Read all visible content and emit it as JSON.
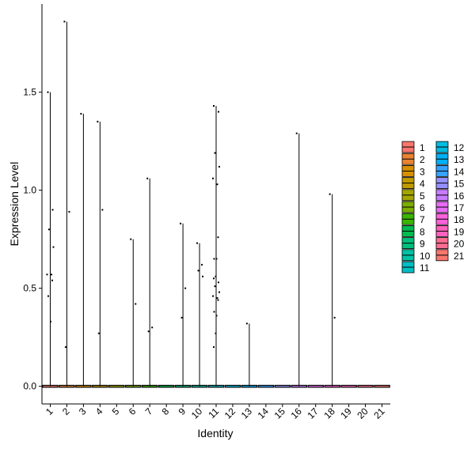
{
  "chart_data": {
    "type": "violin",
    "xlabel": "Identity",
    "ylabel": "Expression Level",
    "ylim": [
      -0.09,
      1.95
    ],
    "yticks": [
      0.0,
      0.5,
      1.0,
      1.5
    ],
    "ytick_labels": [
      "0.0",
      "0.5",
      "1.0",
      "1.5"
    ],
    "grid": false,
    "legend_position": "right",
    "categories": [
      "1",
      "2",
      "3",
      "4",
      "5",
      "6",
      "7",
      "8",
      "9",
      "10",
      "11",
      "12",
      "13",
      "14",
      "15",
      "16",
      "17",
      "18",
      "19",
      "20",
      "21"
    ],
    "colors": [
      "#F8766D",
      "#EA8331",
      "#D89000",
      "#C09B00",
      "#A3A500",
      "#7CAE00",
      "#39B600",
      "#00BB4E",
      "#00BF7D",
      "#00C1A3",
      "#00BFC4",
      "#00BAE0",
      "#00B0F6",
      "#35A2FF",
      "#9590FF",
      "#C77CFF",
      "#E76BF3",
      "#FA62DB",
      "#FF62BC",
      "#FF6C91",
      "#F8766D"
    ],
    "max_values": [
      1.5,
      1.86,
      1.39,
      1.35,
      0,
      0.75,
      1.06,
      0,
      0.83,
      0.73,
      1.43,
      0,
      0.32,
      0,
      0,
      1.29,
      0,
      0.98,
      0,
      0,
      0
    ],
    "points": [
      {
        "category": "1",
        "y": [
          1.5,
          0.9,
          0.8,
          0.71,
          0.57,
          0.57,
          0.54,
          0.46,
          0.33
        ]
      },
      {
        "category": "2",
        "y": [
          1.86,
          0.89,
          0.2
        ]
      },
      {
        "category": "3",
        "y": [
          1.39
        ]
      },
      {
        "category": "4",
        "y": [
          1.35,
          0.9,
          0.27
        ]
      },
      {
        "category": "6",
        "y": [
          0.75,
          0.42
        ]
      },
      {
        "category": "7",
        "y": [
          1.06,
          0.3,
          0.28
        ]
      },
      {
        "category": "9",
        "y": [
          0.83,
          0.5,
          0.35
        ]
      },
      {
        "category": "10",
        "y": [
          0.73,
          0.62,
          0.59,
          0.56
        ]
      },
      {
        "category": "11",
        "y": [
          1.43,
          1.4,
          1.19,
          1.12,
          1.06,
          1.03,
          0.76,
          0.65,
          0.65,
          0.56,
          0.55,
          0.53,
          0.51,
          0.48,
          0.46,
          0.45,
          0.44,
          0.38,
          0.36,
          0.27,
          0.2
        ]
      },
      {
        "category": "13",
        "y": [
          0.32
        ]
      },
      {
        "category": "16",
        "y": [
          1.29
        ]
      },
      {
        "category": "18",
        "y": [
          0.98,
          0.35
        ]
      }
    ]
  }
}
